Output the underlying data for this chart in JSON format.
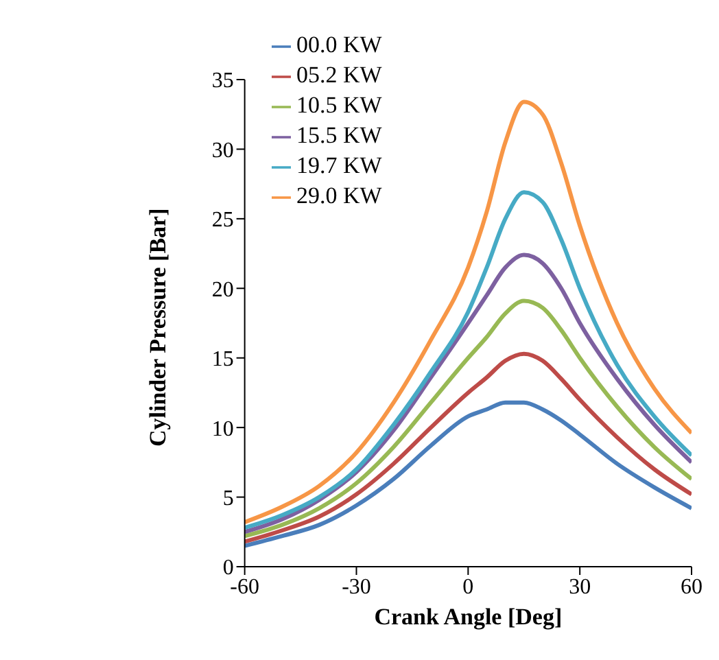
{
  "chart_data": {
    "type": "line",
    "xlabel": "Crank Angle [Deg]",
    "ylabel": "Cylinder Pressure [Bar]",
    "x": [
      -60,
      -50,
      -40,
      -30,
      -20,
      -10,
      0,
      5,
      10,
      15,
      20,
      25,
      30,
      40,
      50,
      60
    ],
    "series": [
      {
        "name": "00.0 KW",
        "color": "#4a7ebb",
        "values": [
          1.5,
          2.2,
          3.0,
          4.4,
          6.3,
          8.7,
          10.8,
          11.3,
          11.8,
          11.8,
          11.3,
          10.5,
          9.5,
          7.4,
          5.7,
          4.2
        ]
      },
      {
        "name": "05.2 KW",
        "color": "#be4b48",
        "values": [
          1.8,
          2.6,
          3.6,
          5.2,
          7.4,
          10.0,
          12.5,
          13.6,
          14.8,
          15.3,
          14.8,
          13.5,
          12.0,
          9.3,
          7.0,
          5.2
        ]
      },
      {
        "name": "10.5 KW",
        "color": "#98b954",
        "values": [
          2.2,
          3.0,
          4.2,
          6.0,
          8.6,
          11.8,
          15.0,
          16.5,
          18.2,
          19.1,
          18.6,
          17.0,
          15.0,
          11.5,
          8.6,
          6.3
        ]
      },
      {
        "name": "15.5 KW",
        "color": "#7d60a0",
        "values": [
          2.5,
          3.4,
          4.8,
          6.8,
          9.8,
          13.6,
          17.5,
          19.5,
          21.5,
          22.4,
          21.8,
          20.0,
          17.5,
          13.5,
          10.2,
          7.5
        ]
      },
      {
        "name": "19.7 KW",
        "color": "#46aac5",
        "values": [
          2.8,
          3.7,
          5.0,
          7.0,
          10.2,
          14.0,
          18.3,
          21.5,
          25.0,
          26.9,
          26.2,
          23.5,
          20.0,
          14.5,
          10.8,
          8.0
        ]
      },
      {
        "name": "29.0 KW",
        "color": "#f79646",
        "values": [
          3.2,
          4.3,
          5.8,
          8.2,
          11.8,
          16.3,
          21.5,
          25.5,
          30.5,
          33.4,
          32.5,
          29.0,
          24.5,
          17.5,
          12.8,
          9.6
        ]
      }
    ],
    "xlim": [
      -60,
      60
    ],
    "xticks": [
      -60,
      -30,
      0,
      30,
      60
    ],
    "ylim": [
      0,
      35
    ],
    "yticks": [
      0,
      5,
      10,
      15,
      20,
      25,
      30,
      35
    ],
    "grid": false,
    "legend": "top left",
    "marker": "none",
    "line_style": "solid"
  }
}
